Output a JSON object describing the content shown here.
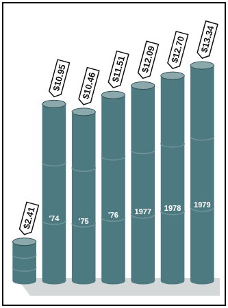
{
  "chart_data": {
    "type": "bar",
    "categories": [
      null,
      "'74",
      "'75",
      "'76",
      "1977",
      "1978",
      "1979"
    ],
    "values": [
      2.41,
      10.95,
      10.46,
      11.51,
      12.09,
      12.7,
      13.34
    ],
    "value_labels": [
      "$2.41",
      "$10.95",
      "$10.46",
      "$11.51",
      "$12.09",
      "$12.70",
      "$13.34"
    ],
    "color": "#4d7a80",
    "ylim": [
      0,
      14
    ],
    "grid": false,
    "data_labels": true,
    "tick_labels": false
  }
}
